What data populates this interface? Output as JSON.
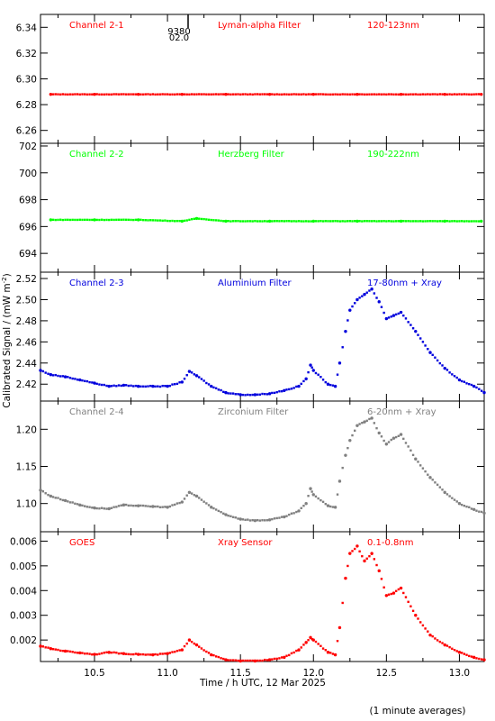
{
  "figure": {
    "ylabel": "Calibrated Signal / (mW m",
    "ylabel_sup": "-2",
    "ylabel_end": ")",
    "xlabel": "Time / h UTC, 12 Mar 2025",
    "footnote": "(1 minute averages)",
    "marker": "9380",
    "marker_sub": "02.0"
  },
  "colors": {
    "channel_2_1": "#ff0000",
    "channel_2_2": "#00ff00",
    "channel_2_3": "#0000dd",
    "channel_2_4": "#808080",
    "goes": "#ff0000",
    "axis": "#000000"
  },
  "chart_data": [
    {
      "type": "scatter",
      "name": "Channel 2-1",
      "labels": [
        "Channel 2-1",
        "Lyman-alpha Filter",
        "120-123nm"
      ],
      "xlim": [
        10.13,
        13.17
      ],
      "ylim": [
        6.25,
        6.35
      ],
      "yticks": [
        "6.26",
        "6.28",
        "6.30",
        "6.32",
        "6.34"
      ],
      "color": "#ff0000",
      "x": [
        10.2,
        10.5,
        10.8,
        11.1,
        11.4,
        11.7,
        12.0,
        12.3,
        12.6,
        12.9,
        13.15
      ],
      "y": [
        6.288,
        6.288,
        6.288,
        6.288,
        6.288,
        6.288,
        6.288,
        6.288,
        6.288,
        6.288,
        6.288
      ]
    },
    {
      "type": "scatter",
      "name": "Channel 2-2",
      "labels": [
        "Channel 2-2",
        "Herzberg Filter",
        "190-222nm"
      ],
      "xlim": [
        10.13,
        13.17
      ],
      "ylim": [
        692.6,
        702.2
      ],
      "yticks": [
        "694",
        "696",
        "698",
        "700",
        "702"
      ],
      "color": "#00ff00",
      "x": [
        10.2,
        10.5,
        10.8,
        11.1,
        11.2,
        11.4,
        11.7,
        12.0,
        12.3,
        12.6,
        12.9,
        13.15
      ],
      "y": [
        696.5,
        696.5,
        696.5,
        696.4,
        696.6,
        696.4,
        696.4,
        696.4,
        696.4,
        696.4,
        696.4,
        696.4
      ]
    },
    {
      "type": "scatter",
      "name": "Channel 2-3",
      "labels": [
        "Channel 2-3",
        "Aluminium Filter",
        "17-80nm + Xray"
      ],
      "xlim": [
        10.13,
        13.17
      ],
      "ylim": [
        2.404,
        2.526
      ],
      "yticks": [
        "2.42",
        "2.44",
        "2.46",
        "2.48",
        "2.50",
        "2.52"
      ],
      "color": "#0000dd",
      "x": [
        10.13,
        10.2,
        10.3,
        10.4,
        10.5,
        10.6,
        10.7,
        10.8,
        10.9,
        11.0,
        11.1,
        11.15,
        11.2,
        11.3,
        11.4,
        11.5,
        11.6,
        11.7,
        11.8,
        11.9,
        11.95,
        11.98,
        12.0,
        12.1,
        12.15,
        12.18,
        12.22,
        12.25,
        12.3,
        12.35,
        12.4,
        12.45,
        12.5,
        12.55,
        12.6,
        12.7,
        12.8,
        12.9,
        13.0,
        13.1,
        13.17
      ],
      "y": [
        2.433,
        2.429,
        2.427,
        2.424,
        2.421,
        2.418,
        2.419,
        2.418,
        2.418,
        2.418,
        2.422,
        2.432,
        2.428,
        2.418,
        2.412,
        2.41,
        2.41,
        2.411,
        2.414,
        2.418,
        2.425,
        2.438,
        2.433,
        2.42,
        2.418,
        2.44,
        2.47,
        2.49,
        2.5,
        2.505,
        2.51,
        2.498,
        2.482,
        2.485,
        2.488,
        2.47,
        2.45,
        2.435,
        2.424,
        2.418,
        2.412
      ]
    },
    {
      "type": "scatter",
      "name": "Channel 2-4",
      "labels": [
        "Channel 2-4",
        "Zirconium Filter",
        "6-20nm + Xray"
      ],
      "xlim": [
        10.13,
        13.17
      ],
      "ylim": [
        1.062,
        1.238
      ],
      "yticks": [
        "1.10",
        "1.15",
        "1.20"
      ],
      "color": "#808080",
      "x": [
        10.13,
        10.2,
        10.3,
        10.4,
        10.5,
        10.6,
        10.7,
        10.8,
        10.9,
        11.0,
        11.1,
        11.15,
        11.2,
        11.3,
        11.4,
        11.5,
        11.6,
        11.7,
        11.8,
        11.9,
        11.95,
        11.98,
        12.0,
        12.1,
        12.15,
        12.18,
        12.22,
        12.25,
        12.3,
        12.35,
        12.4,
        12.45,
        12.5,
        12.55,
        12.6,
        12.7,
        12.8,
        12.9,
        13.0,
        13.1,
        13.17
      ],
      "y": [
        1.118,
        1.11,
        1.104,
        1.098,
        1.094,
        1.093,
        1.098,
        1.097,
        1.096,
        1.095,
        1.102,
        1.115,
        1.11,
        1.095,
        1.085,
        1.079,
        1.077,
        1.078,
        1.082,
        1.09,
        1.1,
        1.12,
        1.112,
        1.097,
        1.095,
        1.13,
        1.165,
        1.185,
        1.205,
        1.21,
        1.215,
        1.195,
        1.18,
        1.188,
        1.193,
        1.16,
        1.135,
        1.115,
        1.1,
        1.092,
        1.087
      ]
    },
    {
      "type": "scatter",
      "name": "GOES",
      "labels": [
        "GOES",
        "Xray Sensor",
        "0.1-0.8nm"
      ],
      "xlim": [
        10.13,
        13.17
      ],
      "ylim": [
        0.00113,
        0.00638
      ],
      "yticks": [
        "0.002",
        "0.003",
        "0.004",
        "0.005",
        "0.006"
      ],
      "xticks": [
        "10.5",
        "11.0",
        "11.5",
        "12.0",
        "12.5",
        "13.0"
      ],
      "color": "#ff0000",
      "x": [
        10.13,
        10.2,
        10.3,
        10.4,
        10.5,
        10.6,
        10.7,
        10.8,
        10.9,
        11.0,
        11.1,
        11.15,
        11.2,
        11.3,
        11.4,
        11.5,
        11.6,
        11.7,
        11.8,
        11.9,
        11.95,
        11.98,
        12.0,
        12.1,
        12.15,
        12.18,
        12.22,
        12.25,
        12.3,
        12.35,
        12.4,
        12.45,
        12.5,
        12.55,
        12.6,
        12.7,
        12.8,
        12.9,
        13.0,
        13.1,
        13.17
      ],
      "y": [
        0.00175,
        0.00165,
        0.00155,
        0.00148,
        0.00142,
        0.0015,
        0.00145,
        0.00142,
        0.0014,
        0.00145,
        0.0016,
        0.002,
        0.0018,
        0.0014,
        0.0012,
        0.00115,
        0.00115,
        0.0012,
        0.0013,
        0.0016,
        0.0019,
        0.0021,
        0.002,
        0.0015,
        0.0014,
        0.0025,
        0.0045,
        0.0055,
        0.0058,
        0.0052,
        0.0055,
        0.0048,
        0.0038,
        0.0039,
        0.0041,
        0.003,
        0.0022,
        0.0018,
        0.0015,
        0.0013,
        0.0012
      ]
    }
  ]
}
